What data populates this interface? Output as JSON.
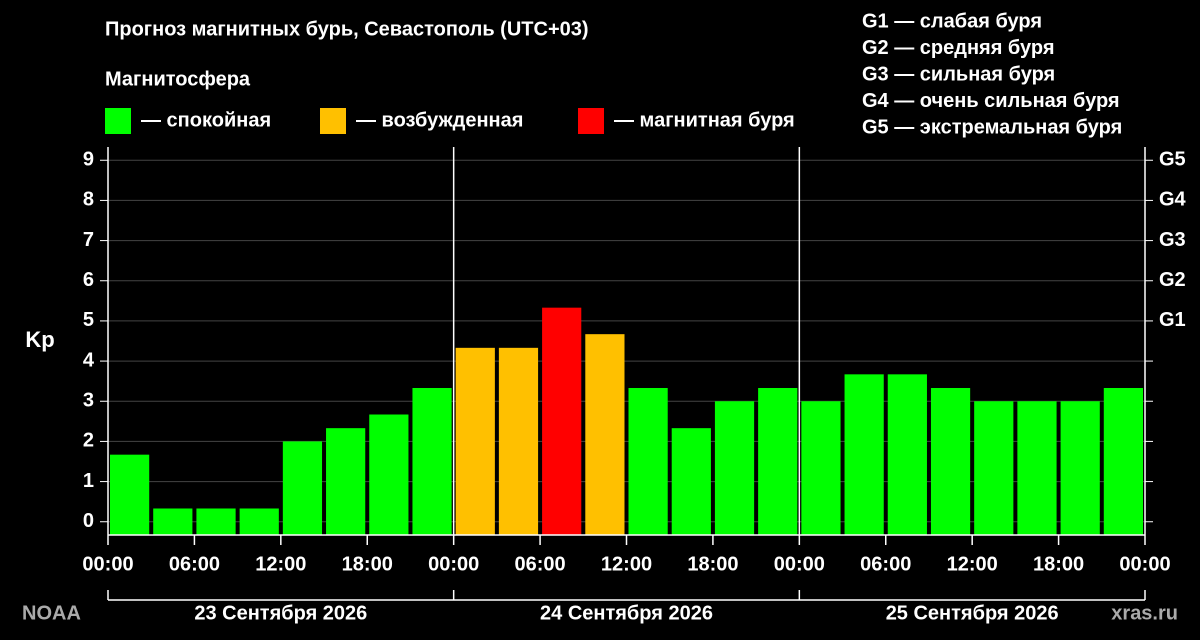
{
  "chart_data": {
    "type": "bar",
    "title": "Прогноз магнитных бурь, Севастополь (UTC+03)",
    "subtitle": "Магнитосфера",
    "legend": [
      {
        "label": "— спокойная",
        "color": "#00ff00"
      },
      {
        "label": "— возбужденная",
        "color": "#ffc000"
      },
      {
        "label": "— магнитная буря",
        "color": "#ff0000"
      }
    ],
    "annotations": [
      "G1 — слабая буря",
      "G2 — средняя буря",
      "G3 — сильная буря",
      "G4 — очень сильная буря",
      "G5 — экстремальная буря"
    ],
    "ylabel": "Kp",
    "x": [
      0,
      3,
      6,
      9,
      12,
      15,
      18,
      21,
      24,
      27,
      30,
      33,
      36,
      39,
      42,
      45,
      48,
      51,
      54,
      57,
      60,
      63,
      66,
      69
    ],
    "bar_width": 3,
    "values": [
      1.67,
      0.33,
      0.33,
      0.33,
      2.0,
      2.33,
      2.67,
      3.33,
      4.33,
      4.33,
      5.33,
      4.67,
      3.33,
      2.33,
      3.0,
      3.33,
      3.0,
      3.67,
      3.67,
      3.33,
      3.0,
      3.0,
      3.0,
      3.33
    ],
    "colors": [
      "#00ff00",
      "#00ff00",
      "#00ff00",
      "#00ff00",
      "#00ff00",
      "#00ff00",
      "#00ff00",
      "#00ff00",
      "#ffc000",
      "#ffc000",
      "#ff0000",
      "#ffc000",
      "#00ff00",
      "#00ff00",
      "#00ff00",
      "#00ff00",
      "#00ff00",
      "#00ff00",
      "#00ff00",
      "#00ff00",
      "#00ff00",
      "#00ff00",
      "#00ff00",
      "#00ff00"
    ],
    "xlim": [
      0,
      72
    ],
    "xticks": [
      {
        "value": 0,
        "label": "00:00"
      },
      {
        "value": 6,
        "label": "06:00"
      },
      {
        "value": 12,
        "label": "12:00"
      },
      {
        "value": 18,
        "label": "18:00"
      },
      {
        "value": 24,
        "label": "00:00"
      },
      {
        "value": 30,
        "label": "06:00"
      },
      {
        "value": 36,
        "label": "12:00"
      },
      {
        "value": 42,
        "label": "18:00"
      },
      {
        "value": 48,
        "label": "00:00"
      },
      {
        "value": 54,
        "label": "06:00"
      },
      {
        "value": 60,
        "label": "12:00"
      },
      {
        "value": 66,
        "label": "18:00"
      },
      {
        "value": 72,
        "label": "00:00"
      }
    ],
    "day_labels": [
      "23 Сентября 2026",
      "24 Сентября 2026",
      "25 Сентября 2026"
    ],
    "day_separators": [
      24,
      48
    ],
    "ylim": [
      -0.33,
      9.33
    ],
    "yticks": [
      0,
      1,
      2,
      3,
      4,
      5,
      6,
      7,
      8,
      9
    ],
    "y2lim": [
      -0.33,
      9.33
    ],
    "y2ticks": [
      {
        "value": 5,
        "label": "G1"
      },
      {
        "value": 6,
        "label": "G2"
      },
      {
        "value": 7,
        "label": "G3"
      },
      {
        "value": 8,
        "label": "G4"
      },
      {
        "value": 9,
        "label": "G5"
      }
    ],
    "grid": true,
    "source": "NOAA",
    "site": "xras.ru"
  }
}
